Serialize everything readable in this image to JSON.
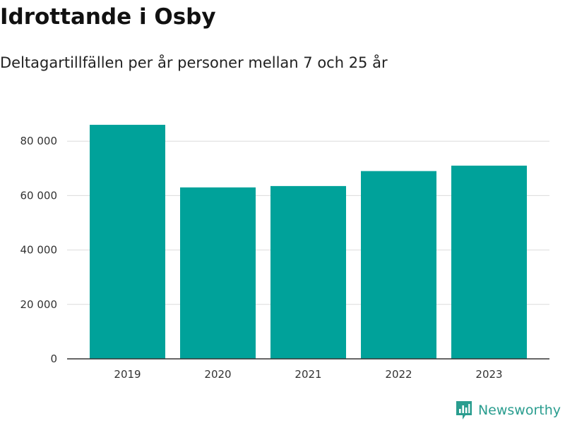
{
  "colors": {
    "bar": "#00a29a",
    "grid": "#dcdcdc",
    "axis": "#333333",
    "brand": "#2a9d8f"
  },
  "brand": {
    "name": "Newsworthy",
    "icon": "newsworthy-logo-icon"
  },
  "chart_data": {
    "type": "bar",
    "title": "Idrottande i Osby",
    "subtitle": "Deltagartillfällen per år personer mellan 7 och 25 år",
    "xlabel": "",
    "ylabel": "",
    "categories": [
      "2019",
      "2020",
      "2021",
      "2022",
      "2023"
    ],
    "values": [
      86000,
      63000,
      63500,
      69000,
      71000
    ],
    "ylim": [
      0,
      80000
    ],
    "yticks": [
      0,
      20000,
      40000,
      60000,
      80000
    ],
    "ytick_labels": [
      "0",
      "20 000",
      "40 000",
      "60 000",
      "80 000"
    ],
    "grid": true,
    "legend": "none"
  }
}
